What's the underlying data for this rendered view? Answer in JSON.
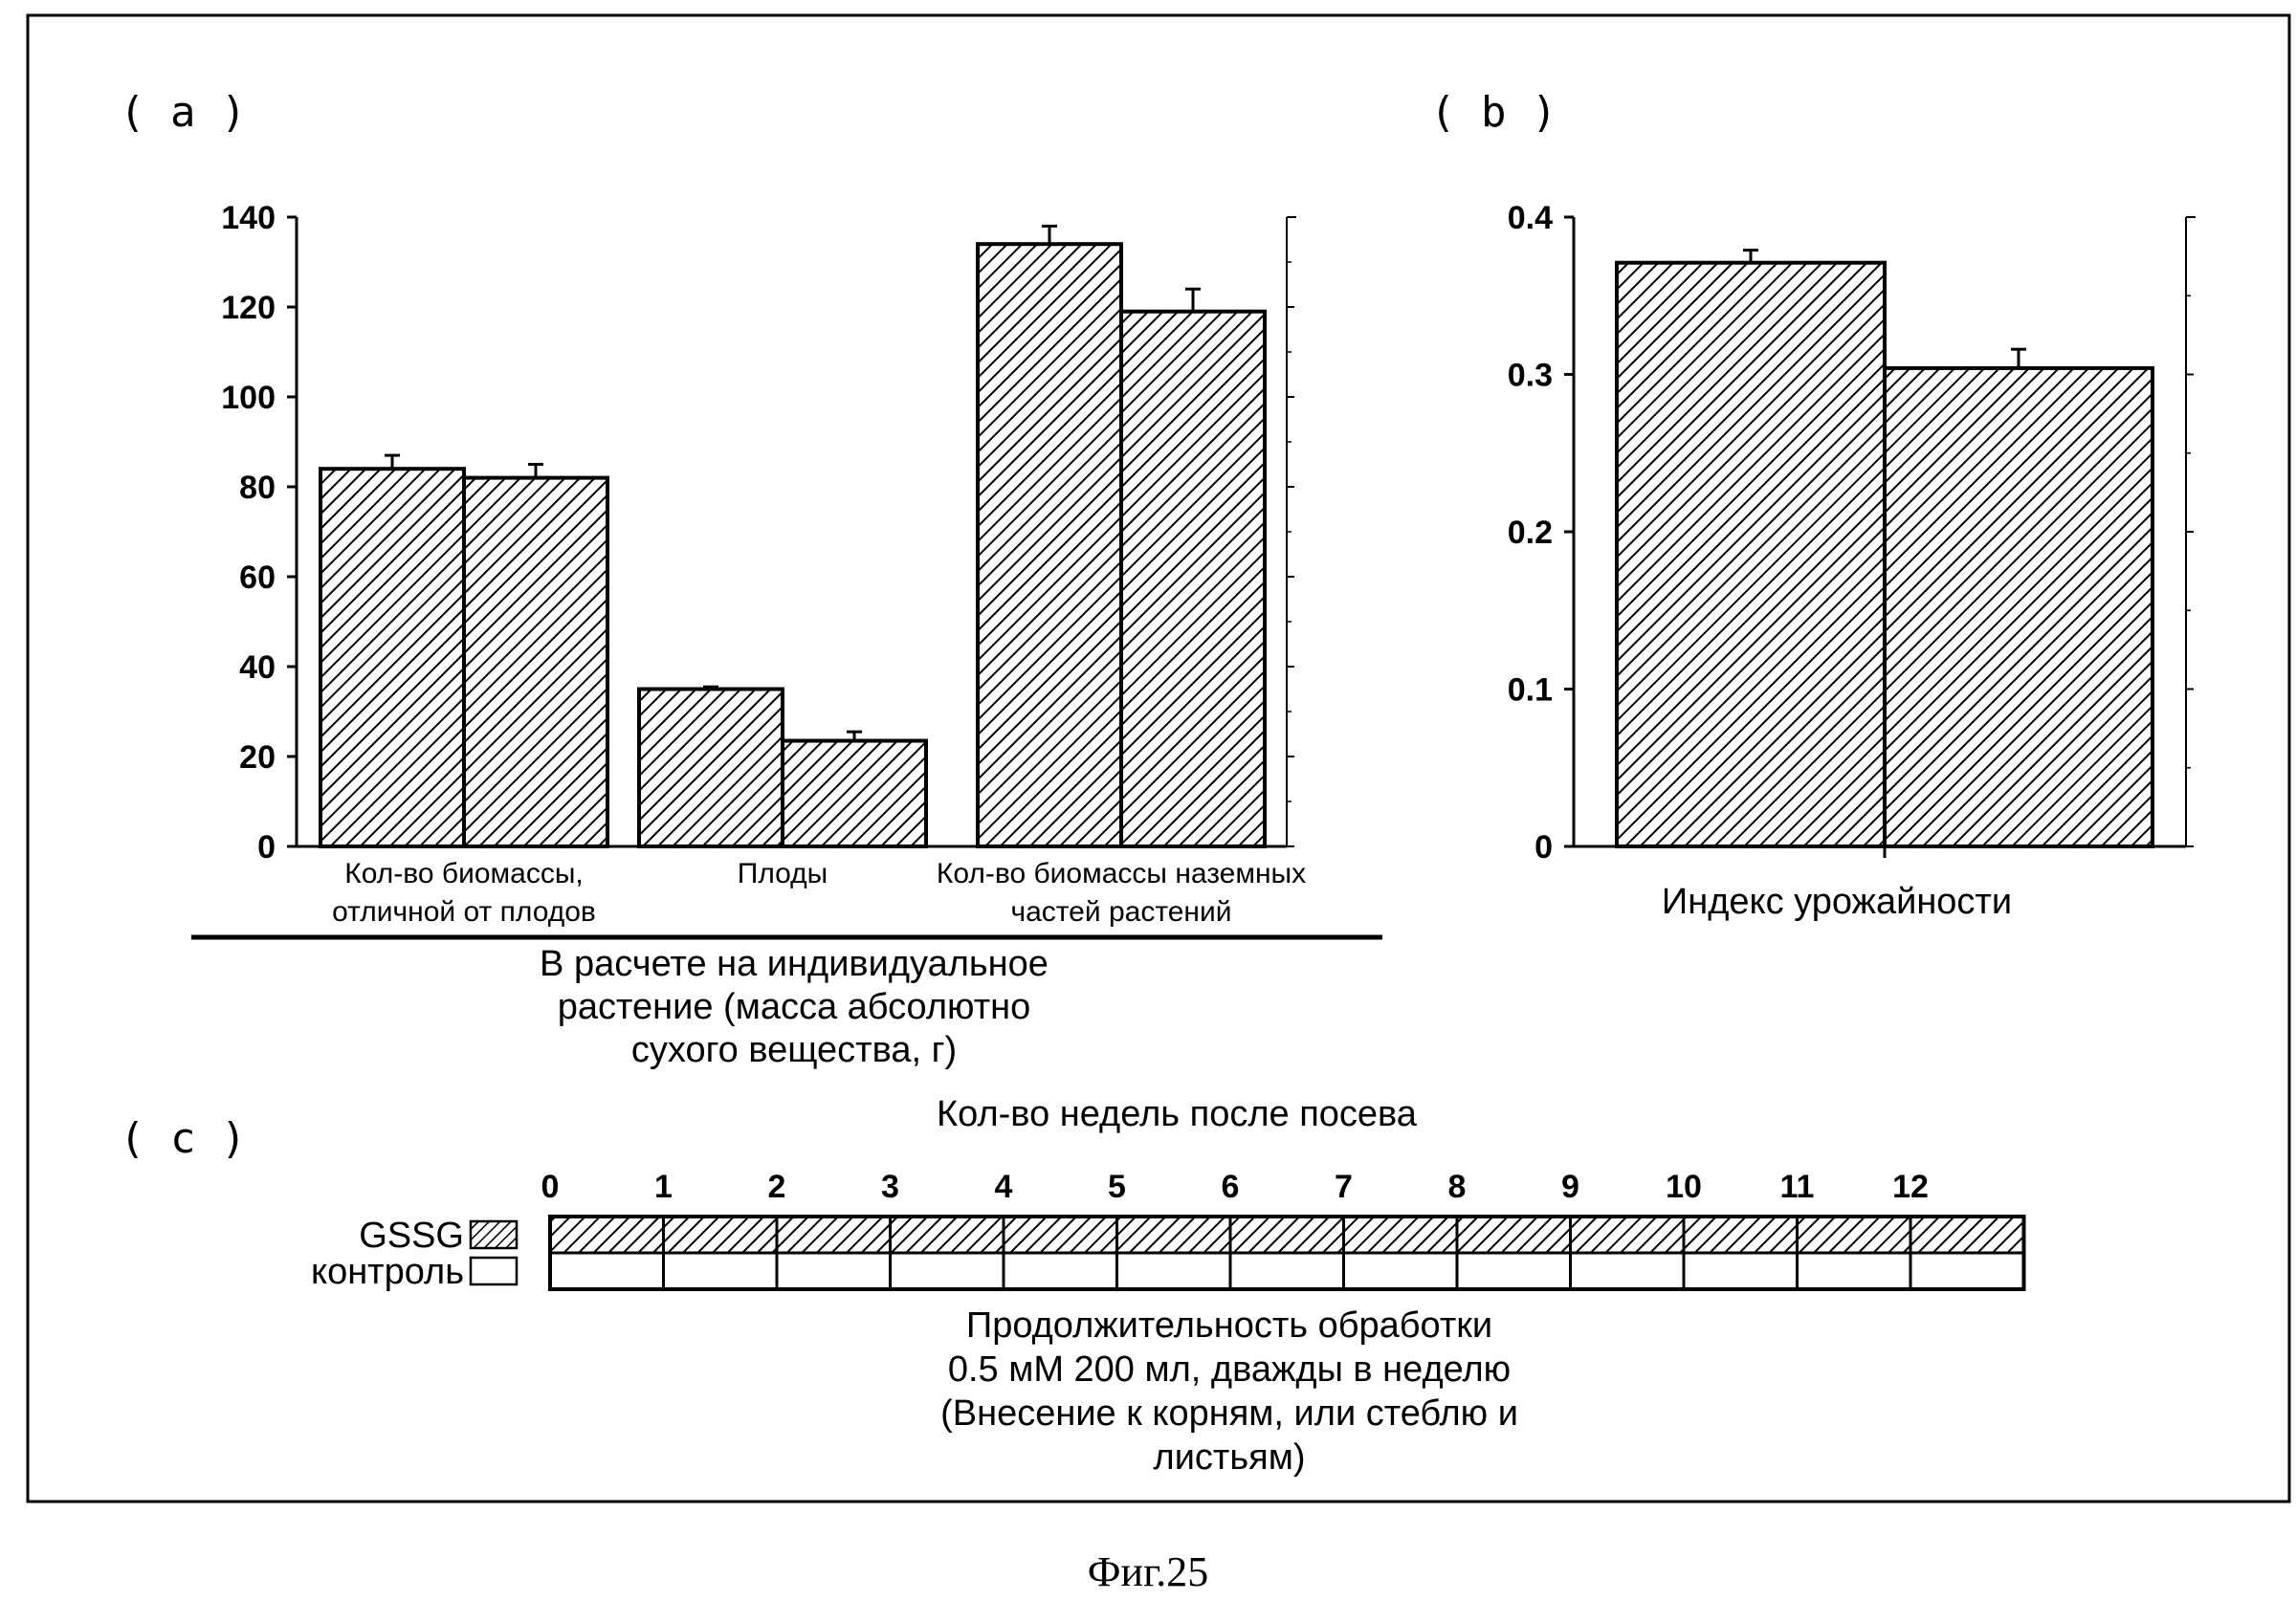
{
  "figure_caption": "Фиг.25",
  "chart_data": [
    {
      "panel_label": "( a )",
      "type": "bar",
      "categories": [
        [
          "Кол-во биомассы,",
          "отличной от плодов"
        ],
        [
          "Плоды"
        ],
        [
          "Кол-во биомассы наземных",
          "частей растений"
        ]
      ],
      "series": [
        {
          "values": [
            84,
            35,
            134
          ],
          "errors": [
            3,
            0.5,
            4
          ]
        },
        {
          "values": [
            82,
            23.5,
            119
          ],
          "errors": [
            3,
            2,
            5
          ]
        }
      ],
      "ylim": [
        0,
        140
      ],
      "yticks": [
        "0",
        "20",
        "40",
        "60",
        "80",
        "100",
        "120",
        "140"
      ],
      "xlabel_lines": [
        "В расчете на индивидуальное",
        "растение (масса абсолютно",
        "сухого вещества, г)"
      ]
    },
    {
      "panel_label": "( b )",
      "type": "bar",
      "categories": [
        "Индекс урожайности"
      ],
      "series": [
        {
          "values": [
            0.371
          ],
          "errors": [
            0.008
          ]
        },
        {
          "values": [
            0.304
          ],
          "errors": [
            0.012
          ]
        }
      ],
      "ylim": [
        0,
        0.4
      ],
      "yticks": [
        "0",
        "0.1",
        "0.2",
        "0.3",
        "0.4"
      ]
    },
    {
      "panel_label": "( c )",
      "type": "table",
      "title": "Кол-во недель после посева",
      "weeks": [
        "0",
        "1",
        "2",
        "3",
        "4",
        "5",
        "6",
        "7",
        "8",
        "9",
        "10",
        "11",
        "12"
      ],
      "rows": [
        {
          "name": "GSSG",
          "treated_weeks": 13
        },
        {
          "name": "контроль",
          "treated_weeks": 0
        }
      ],
      "footnote_lines": [
        "Продолжительность обработки",
        "0.5 мМ 200 мл, дважды в неделю",
        "(Внесение к корням, или стеблю и",
        "листьям)"
      ]
    }
  ]
}
